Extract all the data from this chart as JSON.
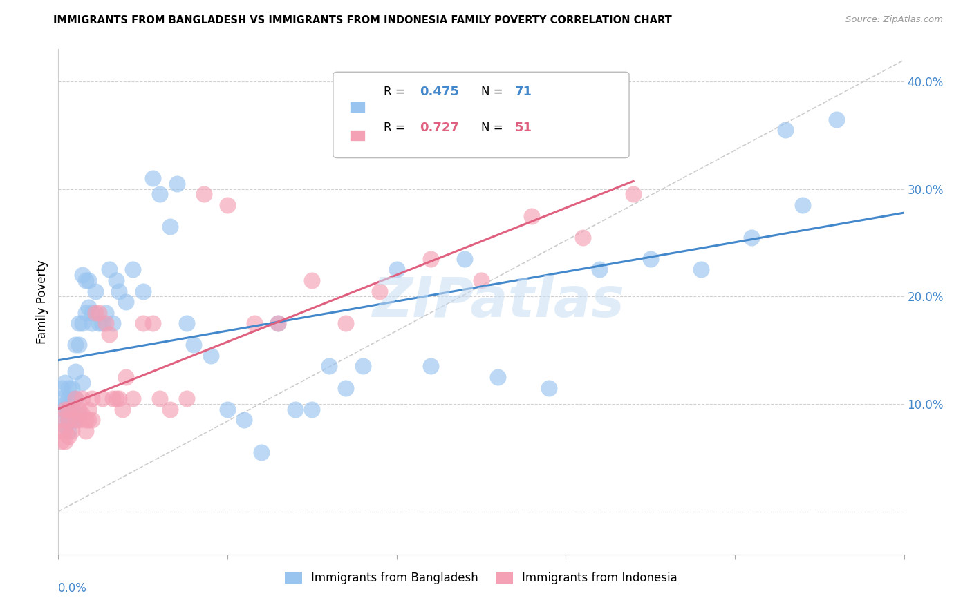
{
  "title": "IMMIGRANTS FROM BANGLADESH VS IMMIGRANTS FROM INDONESIA FAMILY POVERTY CORRELATION CHART",
  "source": "Source: ZipAtlas.com",
  "ylabel": "Family Poverty",
  "xlim": [
    0.0,
    0.25
  ],
  "ylim": [
    -0.04,
    0.43
  ],
  "bangladesh_color": "#99c4f0",
  "indonesia_color": "#f4a0b5",
  "bangladesh_line_color": "#4488cc",
  "indonesia_line_color": "#e06080",
  "watermark": "ZIPatlas",
  "legend_label1": "Immigrants from Bangladesh",
  "legend_label2": "Immigrants from Indonesia",
  "bangladesh_x": [
    0.001,
    0.001,
    0.001,
    0.002,
    0.002,
    0.002,
    0.002,
    0.003,
    0.003,
    0.003,
    0.003,
    0.003,
    0.004,
    0.004,
    0.004,
    0.004,
    0.005,
    0.005,
    0.005,
    0.005,
    0.006,
    0.006,
    0.006,
    0.007,
    0.007,
    0.007,
    0.008,
    0.008,
    0.009,
    0.009,
    0.01,
    0.01,
    0.011,
    0.012,
    0.013,
    0.014,
    0.015,
    0.016,
    0.017,
    0.018,
    0.02,
    0.022,
    0.025,
    0.028,
    0.03,
    0.033,
    0.035,
    0.038,
    0.04,
    0.045,
    0.05,
    0.055,
    0.06,
    0.065,
    0.07,
    0.075,
    0.08,
    0.085,
    0.09,
    0.1,
    0.11,
    0.12,
    0.13,
    0.145,
    0.16,
    0.175,
    0.19,
    0.205,
    0.215,
    0.22,
    0.23
  ],
  "bangladesh_y": [
    0.115,
    0.105,
    0.095,
    0.12,
    0.1,
    0.09,
    0.08,
    0.115,
    0.105,
    0.09,
    0.085,
    0.075,
    0.115,
    0.105,
    0.095,
    0.085,
    0.155,
    0.13,
    0.105,
    0.085,
    0.175,
    0.155,
    0.09,
    0.22,
    0.175,
    0.12,
    0.215,
    0.185,
    0.215,
    0.19,
    0.185,
    0.175,
    0.205,
    0.175,
    0.175,
    0.185,
    0.225,
    0.175,
    0.215,
    0.205,
    0.195,
    0.225,
    0.205,
    0.31,
    0.295,
    0.265,
    0.305,
    0.175,
    0.155,
    0.145,
    0.095,
    0.085,
    0.055,
    0.175,
    0.095,
    0.095,
    0.135,
    0.115,
    0.135,
    0.225,
    0.135,
    0.235,
    0.125,
    0.115,
    0.225,
    0.235,
    0.225,
    0.255,
    0.355,
    0.285,
    0.365
  ],
  "indonesia_x": [
    0.001,
    0.001,
    0.001,
    0.002,
    0.002,
    0.002,
    0.003,
    0.003,
    0.003,
    0.004,
    0.004,
    0.005,
    0.005,
    0.006,
    0.006,
    0.007,
    0.007,
    0.008,
    0.008,
    0.009,
    0.009,
    0.01,
    0.01,
    0.011,
    0.012,
    0.013,
    0.014,
    0.015,
    0.016,
    0.017,
    0.018,
    0.019,
    0.02,
    0.022,
    0.025,
    0.028,
    0.03,
    0.033,
    0.038,
    0.043,
    0.05,
    0.058,
    0.065,
    0.075,
    0.085,
    0.095,
    0.11,
    0.125,
    0.14,
    0.155,
    0.17
  ],
  "indonesia_y": [
    0.085,
    0.075,
    0.065,
    0.095,
    0.075,
    0.065,
    0.095,
    0.085,
    0.07,
    0.095,
    0.075,
    0.105,
    0.085,
    0.095,
    0.085,
    0.105,
    0.09,
    0.085,
    0.075,
    0.095,
    0.085,
    0.105,
    0.085,
    0.185,
    0.185,
    0.105,
    0.175,
    0.165,
    0.105,
    0.105,
    0.105,
    0.095,
    0.125,
    0.105,
    0.175,
    0.175,
    0.105,
    0.095,
    0.105,
    0.295,
    0.285,
    0.175,
    0.175,
    0.215,
    0.175,
    0.205,
    0.235,
    0.215,
    0.275,
    0.255,
    0.295
  ]
}
